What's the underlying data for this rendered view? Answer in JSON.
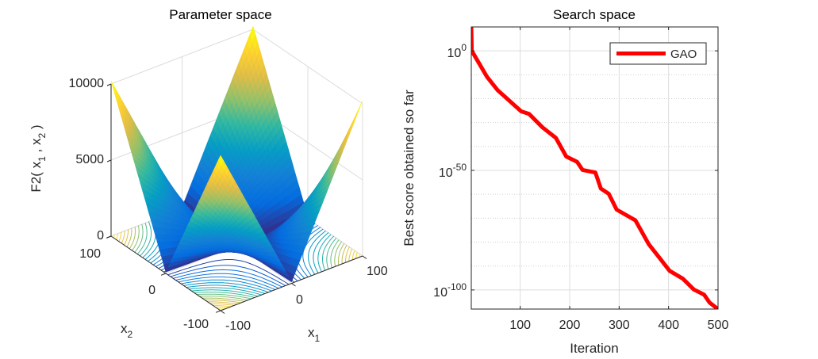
{
  "colors": {
    "line": "#ff0000",
    "axis": "#262626",
    "grid": "#d9d9d9",
    "background": "#ffffff"
  },
  "chart_data": [
    {
      "type": "surface",
      "title": "Parameter space",
      "zlabel": [
        "F2( x",
        "1",
        " , x",
        "2",
        " )"
      ],
      "x1label": [
        "x",
        "1"
      ],
      "x2label": [
        "x",
        "2"
      ],
      "x1_range": [
        -100,
        100
      ],
      "x2_range": [
        -100,
        100
      ],
      "zlim": [
        0,
        10000
      ],
      "z_ticks": [
        "0",
        "5000",
        "10000"
      ],
      "x1_ticks": [
        "-100",
        "0",
        "100"
      ],
      "x2_ticks": [
        "-100",
        "0",
        "100"
      ],
      "contour_levels": 20,
      "colormap": "parula"
    },
    {
      "type": "line",
      "title": "Search space",
      "xlabel": "Iteration",
      "ylabel": "Best score obtained so far",
      "yscale": "log",
      "xlim": [
        1,
        500
      ],
      "ylim_log10": [
        -108,
        10
      ],
      "x_ticks": [
        "100",
        "200",
        "300",
        "400",
        "500"
      ],
      "y_ticks": [
        {
          "base": "10",
          "exp": "0"
        },
        {
          "base": "10",
          "exp": "-50"
        },
        {
          "base": "10",
          "exp": "-100"
        }
      ],
      "grid": true,
      "legend": {
        "placement": "top-right",
        "entries": [
          "GAO"
        ]
      },
      "series": [
        {
          "name": "GAO",
          "x": [
            1,
            2,
            17,
            33,
            54,
            102,
            118,
            145,
            172,
            193,
            215,
            226,
            252,
            263,
            279,
            295,
            333,
            360,
            381,
            402,
            429,
            451,
            472,
            483,
            500
          ],
          "y_log10": [
            10,
            0,
            -5.3,
            -10.9,
            -16.4,
            -25.3,
            -26.4,
            -32,
            -36.4,
            -44.2,
            -46.4,
            -49.8,
            -50.9,
            -57.6,
            -59.8,
            -66.4,
            -70.9,
            -80.9,
            -86.4,
            -92,
            -95.3,
            -99.8,
            -102,
            -105.3,
            -108
          ]
        }
      ]
    }
  ]
}
